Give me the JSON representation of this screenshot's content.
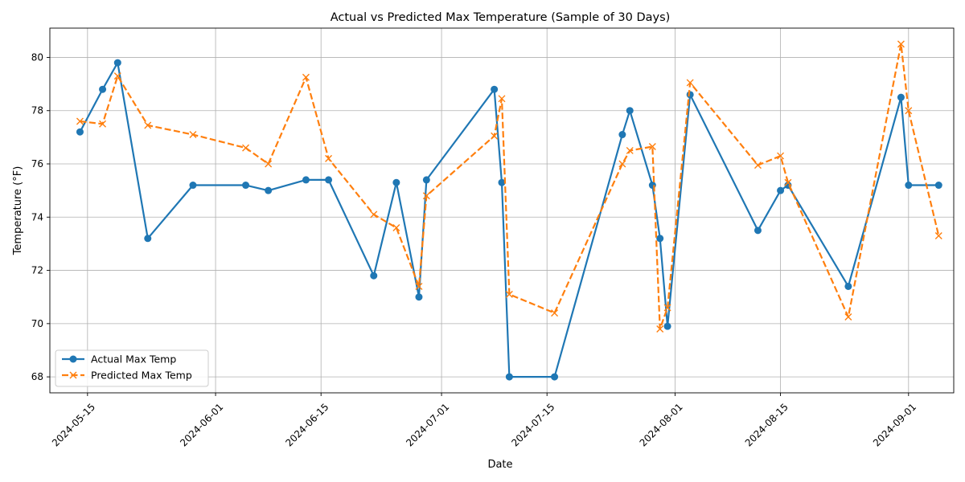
{
  "chart_data": {
    "type": "line",
    "title": "Actual vs Predicted Max Temperature (Sample of 30 Days)",
    "xlabel": "Date",
    "ylabel": "Temperature (°F)",
    "ylim": [
      67.4,
      81.1
    ],
    "xlim": [
      "2024-05-10",
      "2024-09-07"
    ],
    "x_ticks": [
      "2024-05-15",
      "2024-06-01",
      "2024-06-15",
      "2024-07-01",
      "2024-07-15",
      "2024-08-01",
      "2024-08-15",
      "2024-09-01"
    ],
    "y_ticks": [
      68,
      70,
      72,
      74,
      76,
      78,
      80
    ],
    "grid": true,
    "legend_position": "lower-left",
    "x": [
      "2024-05-14",
      "2024-05-17",
      "2024-05-19",
      "2024-05-23",
      "2024-05-29",
      "2024-06-05",
      "2024-06-08",
      "2024-06-13",
      "2024-06-16",
      "2024-06-22",
      "2024-06-25",
      "2024-06-28",
      "2024-06-29",
      "2024-07-08",
      "2024-07-09",
      "2024-07-10",
      "2024-07-16",
      "2024-07-25",
      "2024-07-26",
      "2024-07-29",
      "2024-07-30",
      "2024-07-31",
      "2024-08-03",
      "2024-08-12",
      "2024-08-15",
      "2024-08-16",
      "2024-08-24",
      "2024-08-31",
      "2024-09-01",
      "2024-09-05"
    ],
    "series": [
      {
        "name": "Actual Max Temp",
        "color": "#1f77b4",
        "marker": "circle",
        "style": "solid",
        "values": [
          77.2,
          78.8,
          79.8,
          73.2,
          75.2,
          75.2,
          75.0,
          75.4,
          75.4,
          71.8,
          75.3,
          71.0,
          75.4,
          78.8,
          75.3,
          68.0,
          68.0,
          77.1,
          78.0,
          75.2,
          73.2,
          69.9,
          78.6,
          73.5,
          75.0,
          75.2,
          71.4,
          78.5,
          75.2,
          75.2
        ]
      },
      {
        "name": "Predicted Max Temp",
        "color": "#ff7f0e",
        "marker": "x",
        "style": "dashed",
        "values": [
          77.6,
          77.5,
          79.3,
          77.45,
          77.1,
          76.6,
          76.0,
          79.25,
          76.2,
          74.1,
          73.6,
          71.4,
          74.8,
          77.05,
          78.45,
          71.1,
          70.4,
          76.0,
          76.5,
          76.65,
          69.8,
          70.6,
          79.05,
          75.95,
          76.3,
          75.3,
          70.25,
          80.5,
          78.0,
          73.3
        ]
      }
    ]
  }
}
